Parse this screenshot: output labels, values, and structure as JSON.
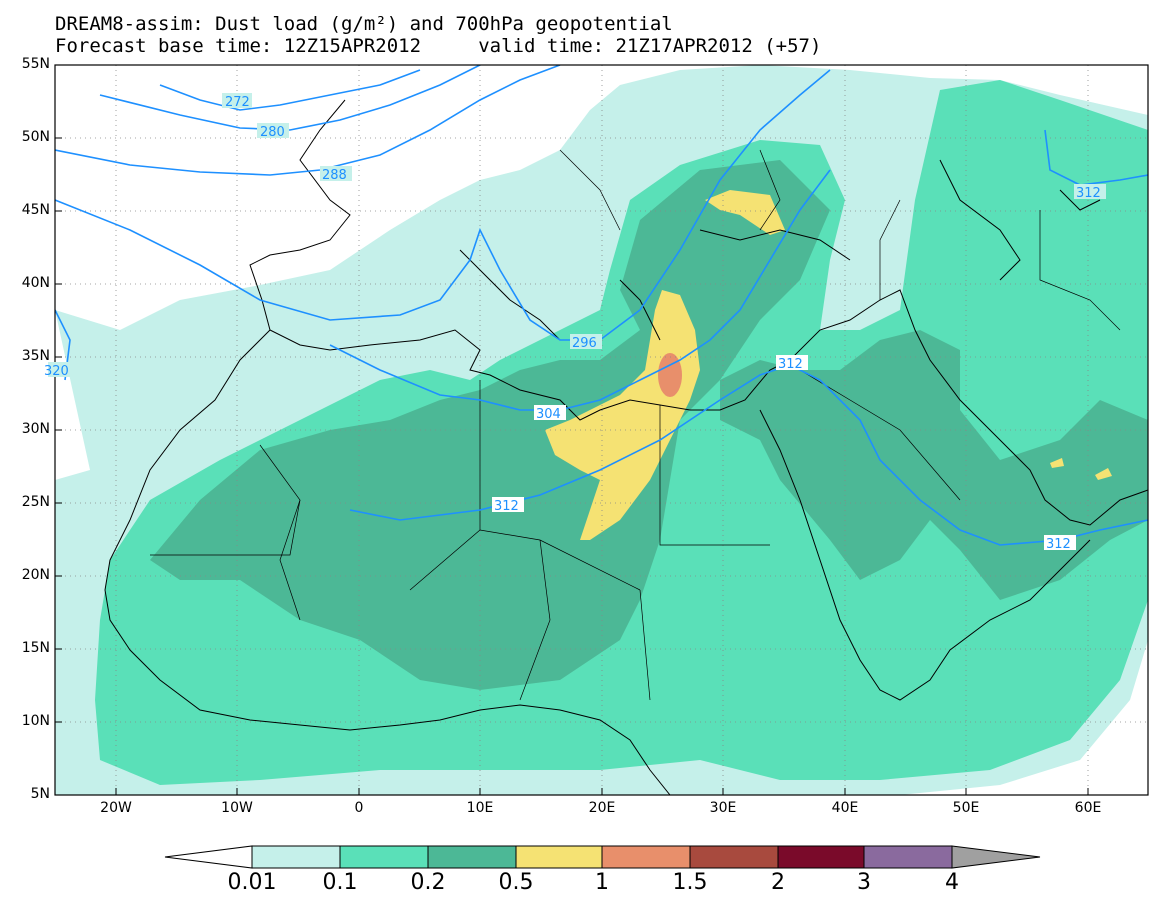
{
  "title": {
    "line1": "DREAM8-assim: Dust load (g/m²) and 700hPa geopotential",
    "line2": "Forecast base time: 12Z15APR2012     valid time: 21Z17APR2012 (+57)"
  },
  "map": {
    "lon_range": [
      -25,
      65
    ],
    "lat_range": [
      5,
      55
    ],
    "lat_labels": [
      "55N",
      "50N",
      "45N",
      "40N",
      "35N",
      "30N",
      "25N",
      "20N",
      "15N",
      "10N",
      "5N"
    ],
    "lon_labels": [
      "20W",
      "10W",
      "0",
      "10E",
      "20E",
      "30E",
      "40E",
      "50E",
      "60E"
    ],
    "grid": "dotted",
    "contour_color": "#1e90ff",
    "contour_labels": [
      "272",
      "280",
      "288",
      "296",
      "304",
      "312",
      "312",
      "312",
      "312",
      "320"
    ]
  },
  "colorbar": {
    "labels": [
      "0.01",
      "0.1",
      "0.2",
      "0.5",
      "1",
      "1.5",
      "2",
      "3",
      "4"
    ],
    "colors": [
      "#c5f0ea",
      "#5ae0b8",
      "#4cb896",
      "#f5e273",
      "#e88f6b",
      "#a84a3e",
      "#7a0a2a",
      "#8a6a9e"
    ],
    "extend_low_color": "#ffffff",
    "extend_high_color": "#a0a0a0"
  }
}
